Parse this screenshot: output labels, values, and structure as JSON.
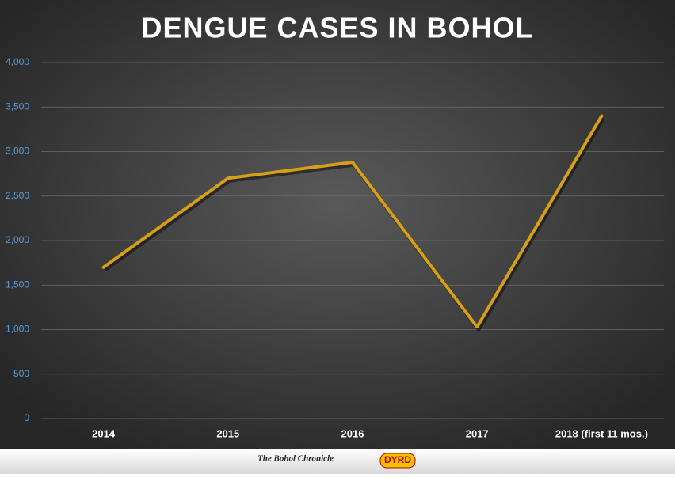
{
  "chart_data": {
    "type": "line",
    "title": "DENGUE CASES IN BOHOL",
    "categories": [
      "2014",
      "2015",
      "2016",
      "2017",
      "2018 (first 11 mos.)"
    ],
    "series": [
      {
        "name": "Dengue cases",
        "color": "#d4a017",
        "values": [
          1700,
          2700,
          2880,
          1030,
          3400
        ]
      }
    ],
    "ylim": [
      0,
      4000
    ],
    "yticks": [
      0,
      500,
      {
        "value": 1000,
        "label": "1,000"
      },
      {
        "value": 1500,
        "label": "1,500"
      },
      {
        "value": 2000,
        "label": "2,000"
      },
      {
        "value": 2500,
        "label": "2,500"
      },
      {
        "value": 3000,
        "label": "3,000"
      },
      {
        "value": 3500,
        "label": "3,500"
      },
      {
        "value": 4000,
        "label": "4,000"
      }
    ],
    "grid": true
  },
  "footer": {
    "logos": [
      "The Bohol Chronicle",
      "DYRD"
    ]
  }
}
